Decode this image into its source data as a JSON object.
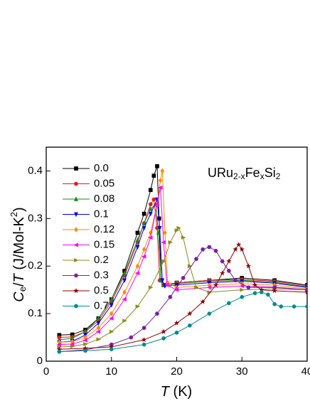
{
  "chart_data": {
    "type": "line",
    "ylabel": [
      "C",
      "e",
      "/",
      "T",
      " (J/Mol-K",
      "2",
      ")"
    ],
    "xlabel": [
      "T",
      " (K)"
    ],
    "annotation": [
      "URu",
      "2-x",
      "Fe",
      "x",
      "Si",
      "2"
    ],
    "xlim": [
      0,
      40
    ],
    "ylim": [
      0,
      0.45
    ],
    "xticks": [
      0,
      10,
      20,
      30,
      40
    ],
    "yticks": [
      0,
      0.1,
      0.2,
      0.3,
      0.4
    ],
    "legend": "upper left",
    "series": [
      {
        "name": "0.0",
        "color": "#000000",
        "marker": "square",
        "x": [
          2,
          4,
          6,
          8,
          10,
          12,
          14,
          15,
          16,
          16.5,
          17,
          17.3,
          17.6,
          18,
          20,
          25,
          30,
          35,
          40
        ],
        "values": [
          0.055,
          0.056,
          0.066,
          0.09,
          0.13,
          0.19,
          0.27,
          0.31,
          0.36,
          0.39,
          0.41,
          0.3,
          0.17,
          0.16,
          0.165,
          0.17,
          0.175,
          0.17,
          0.16
        ]
      },
      {
        "name": "0.05",
        "color": "#e41a1c",
        "marker": "circle",
        "x": [
          2,
          4,
          6,
          8,
          10,
          12,
          14,
          15,
          16,
          16.5,
          17,
          17.4,
          18,
          20,
          25,
          30,
          35,
          40
        ],
        "values": [
          0.05,
          0.051,
          0.062,
          0.085,
          0.125,
          0.18,
          0.25,
          0.29,
          0.33,
          0.34,
          0.28,
          0.17,
          0.16,
          0.165,
          0.17,
          0.172,
          0.168,
          0.158
        ]
      },
      {
        "name": "0.08",
        "color": "#1a8a1a",
        "marker": "triangle-up",
        "x": [
          2,
          4,
          6,
          8,
          10,
          12,
          14,
          15,
          16,
          16.8,
          17.2,
          17.6,
          18,
          20,
          25,
          30,
          35,
          40
        ],
        "values": [
          0.045,
          0.048,
          0.062,
          0.09,
          0.13,
          0.185,
          0.255,
          0.29,
          0.32,
          0.33,
          0.27,
          0.17,
          0.16,
          0.163,
          0.168,
          0.17,
          0.166,
          0.156
        ]
      },
      {
        "name": "0.1",
        "color": "#0000ee",
        "marker": "triangle-down",
        "x": [
          2,
          4,
          6,
          8,
          10,
          12,
          14,
          15,
          16,
          17,
          17.4,
          17.8,
          18.2,
          20,
          25,
          30,
          35,
          40
        ],
        "values": [
          0.04,
          0.042,
          0.055,
          0.08,
          0.118,
          0.17,
          0.24,
          0.28,
          0.31,
          0.34,
          0.28,
          0.17,
          0.158,
          0.16,
          0.165,
          0.168,
          0.164,
          0.155
        ]
      },
      {
        "name": "0.12",
        "color": "#ff8c00",
        "marker": "diamond",
        "x": [
          2,
          4,
          6,
          8,
          10,
          12,
          14,
          15,
          16,
          17,
          17.5,
          17.8,
          18.2,
          18.6,
          20,
          25,
          30,
          35,
          40
        ],
        "values": [
          0.04,
          0.041,
          0.05,
          0.07,
          0.1,
          0.145,
          0.2,
          0.235,
          0.27,
          0.33,
          0.38,
          0.4,
          0.27,
          0.165,
          0.155,
          0.16,
          0.163,
          0.16,
          0.152
        ]
      },
      {
        "name": "0.15",
        "color": "#ff00ff",
        "marker": "triangle-left",
        "x": [
          2,
          4,
          6,
          8,
          10,
          12,
          14,
          15,
          16,
          17,
          17.5,
          18,
          18.5,
          20,
          25,
          30,
          35,
          40
        ],
        "values": [
          0.035,
          0.036,
          0.044,
          0.062,
          0.09,
          0.13,
          0.185,
          0.22,
          0.26,
          0.33,
          0.365,
          0.25,
          0.16,
          0.15,
          0.155,
          0.158,
          0.156,
          0.15
        ]
      },
      {
        "name": "0.2",
        "color": "#8c8c1a",
        "marker": "triangle-right",
        "x": [
          2,
          4,
          6,
          8,
          10,
          12,
          14,
          16,
          18,
          19,
          20,
          20.3,
          21,
          22,
          23,
          25,
          30,
          35,
          40
        ],
        "values": [
          0.03,
          0.031,
          0.036,
          0.046,
          0.062,
          0.085,
          0.115,
          0.155,
          0.21,
          0.25,
          0.275,
          0.28,
          0.26,
          0.2,
          0.155,
          0.145,
          0.15,
          0.152,
          0.15
        ]
      },
      {
        "name": "0.3",
        "color": "#7b1fa2",
        "marker": "hexagon",
        "x": [
          2,
          6,
          10,
          13,
          15,
          17,
          19,
          21,
          23,
          24,
          25,
          26,
          27,
          28,
          29,
          31,
          35,
          40
        ],
        "values": [
          0.02,
          0.024,
          0.035,
          0.05,
          0.07,
          0.1,
          0.135,
          0.175,
          0.215,
          0.235,
          0.24,
          0.232,
          0.21,
          0.19,
          0.17,
          0.155,
          0.155,
          0.15
        ]
      },
      {
        "name": "0.5",
        "color": "#8b0000",
        "marker": "star",
        "x": [
          2,
          6,
          10,
          15,
          18,
          20,
          22,
          24,
          26,
          27,
          28,
          29,
          29.5,
          30,
          31,
          32,
          33,
          35,
          40
        ],
        "values": [
          0.025,
          0.027,
          0.03,
          0.045,
          0.062,
          0.08,
          0.1,
          0.125,
          0.16,
          0.185,
          0.21,
          0.235,
          0.245,
          0.235,
          0.2,
          0.16,
          0.15,
          0.148,
          0.145
        ]
      },
      {
        "name": "0.7",
        "color": "#008b8b",
        "marker": "circle",
        "x": [
          2,
          6,
          10,
          15,
          18,
          20,
          22,
          25,
          28,
          30,
          32,
          33,
          34,
          35,
          36,
          38,
          40
        ],
        "values": [
          0.02,
          0.022,
          0.025,
          0.035,
          0.048,
          0.06,
          0.075,
          0.1,
          0.122,
          0.135,
          0.143,
          0.145,
          0.14,
          0.12,
          0.115,
          0.115,
          0.115
        ]
      }
    ]
  }
}
